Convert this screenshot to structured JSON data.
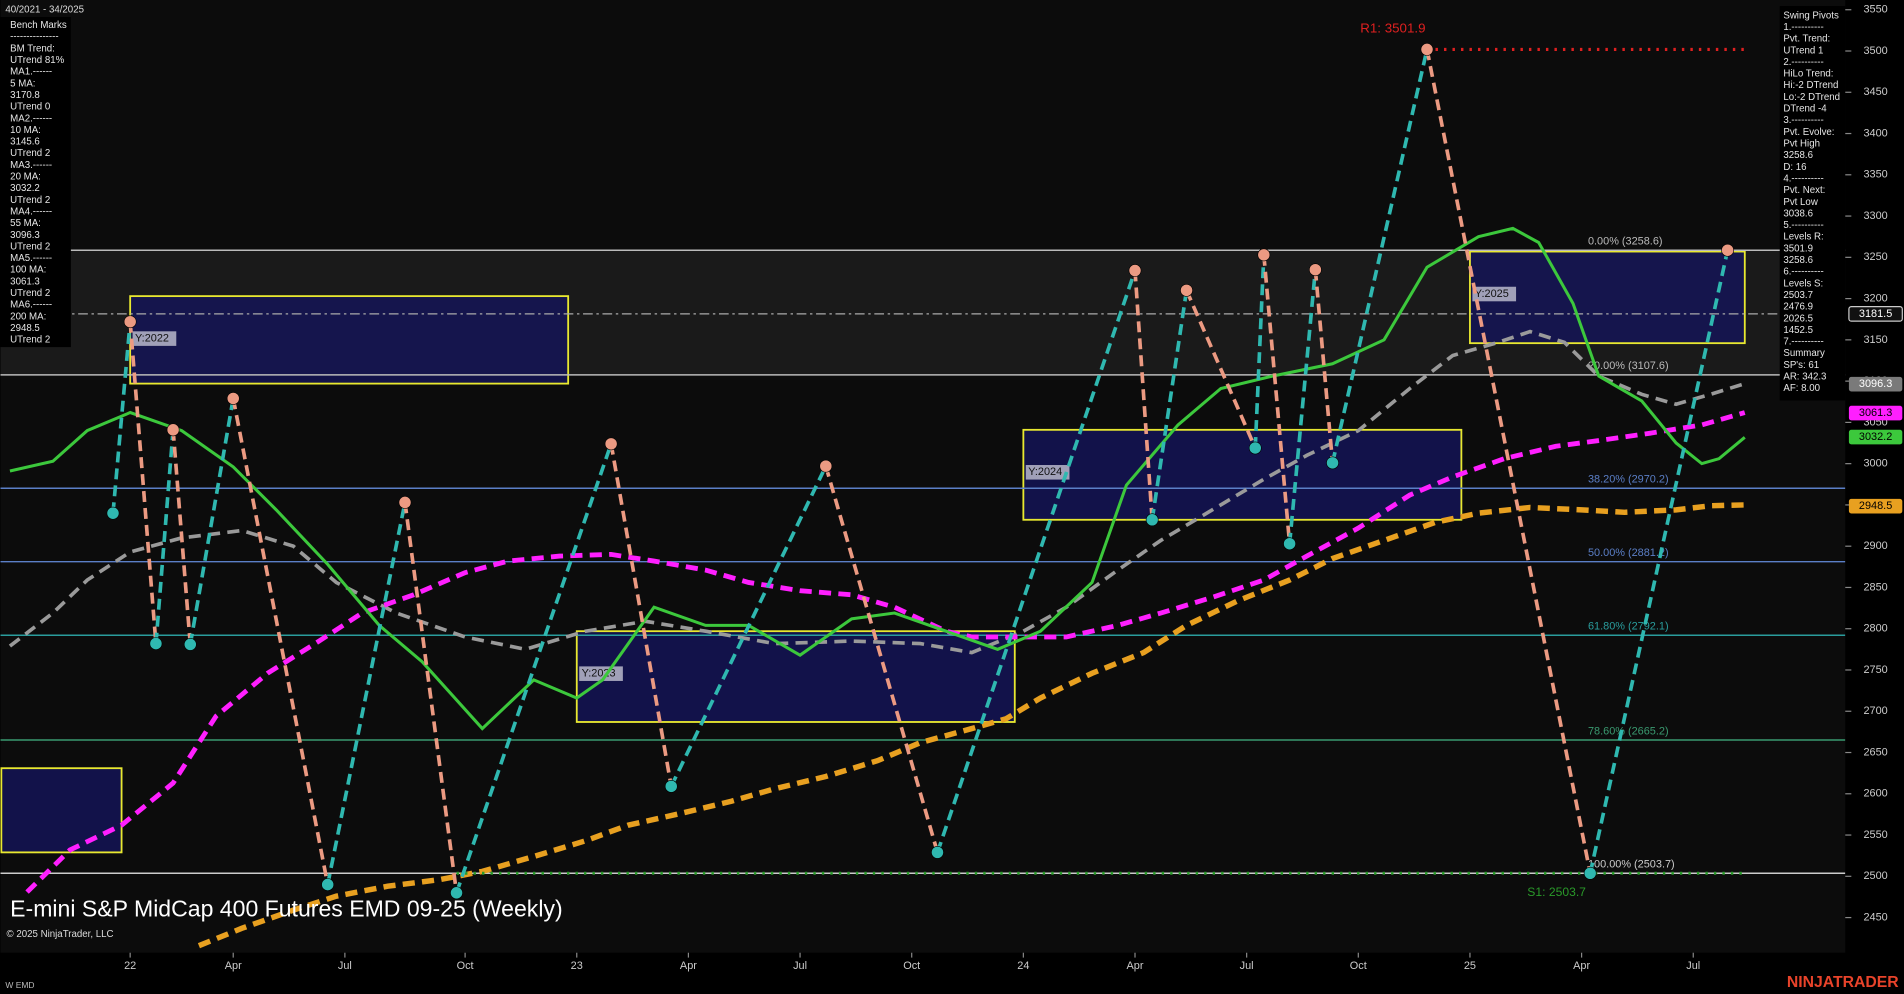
{
  "header": {
    "range": "40/2021 - 34/2025"
  },
  "left_panel": [
    "Bench Marks",
    "---------------",
    "BM Trend:",
    "UTrend 81%",
    "MA1.------",
    "5 MA:",
    "3170.8",
    "UTrend 0",
    "MA2.------",
    "10 MA:",
    "3145.6",
    "UTrend 2",
    "MA3.------",
    "20 MA:",
    "3032.2",
    "UTrend 2",
    "MA4.------",
    "55 MA:",
    "3096.3",
    "UTrend 2",
    "MA5.------",
    "100 MA:",
    "3061.3",
    "UTrend 2",
    "MA6.------",
    "200 MA:",
    "2948.5",
    "UTrend 2"
  ],
  "right_panel": [
    "Swing Pivots",
    "1.----------",
    "Pvt. Trend:",
    "UTrend 1",
    "2.----------",
    "HiLo Trend:",
    "Hi:-2 DTrend",
    "Lo:-2 DTrend",
    "DTrend -4",
    "3.----------",
    "Pvt. Evolve:",
    "Pvt High",
    "3258.6",
    "D: 16",
    "4.----------",
    "Pvt. Next:",
    "Pvt Low",
    "3038.6",
    "5.----------",
    "Levels R:",
    "3501.9",
    "3258.6",
    "6.----------",
    "Levels S:",
    "2503.7",
    "2476.9",
    "2026.5",
    "1452.5",
    "7.----------",
    "Summary",
    "SP's: 61",
    "AR: 342.3",
    "AF: 8.00"
  ],
  "footer": {
    "copyright": "© 2025 NinjaTrader, LLC",
    "instrument": "W EMD",
    "brand": "NINJATRADER"
  },
  "chart_data": {
    "type": "line",
    "title": "E-mini S&P MidCap 400 Futures EMD 09-25 (Weekly)",
    "xlim": [
      -15.1,
      199.7
    ],
    "ylim": [
      2407.4,
      3561.8
    ],
    "xticks": [
      {
        "value": 0,
        "label": "22"
      },
      {
        "value": 12,
        "label": "Apr"
      },
      {
        "value": 25,
        "label": "Jul"
      },
      {
        "value": 39,
        "label": "Oct"
      },
      {
        "value": 52,
        "label": "23"
      },
      {
        "value": 65,
        "label": "Apr"
      },
      {
        "value": 78,
        "label": "Jul"
      },
      {
        "value": 91,
        "label": "Oct"
      },
      {
        "value": 104,
        "label": "24"
      },
      {
        "value": 117,
        "label": "Apr"
      },
      {
        "value": 130,
        "label": "Jul"
      },
      {
        "value": 143,
        "label": "Oct"
      },
      {
        "value": 156,
        "label": "25"
      },
      {
        "value": 169,
        "label": "Apr"
      },
      {
        "value": 182,
        "label": "Jul"
      }
    ],
    "yticks": [
      2450,
      2500,
      2550,
      2600,
      2650,
      2700,
      2750,
      2800,
      2850,
      2900,
      2950,
      3000,
      3050,
      3100,
      3150,
      3200,
      3250,
      3300,
      3350,
      3400,
      3450,
      3500,
      3550
    ],
    "series": [
      {
        "color": "#9a9a9a",
        "dash": "dashed",
        "width": 3,
        "x": [
          -14,
          -9,
          -5,
          0,
          6,
          13,
          19,
          24,
          31,
          39,
          46,
          53,
          60,
          67,
          75,
          84,
          92,
          98,
          104,
          109,
          115,
          120,
          126,
          132,
          137,
          143,
          149,
          154,
          159,
          163,
          167,
          171,
          176,
          180,
          184,
          188
        ],
        "values": [
          2779,
          2819,
          2859,
          2893,
          2910,
          2919,
          2900,
          2856,
          2819,
          2790,
          2775,
          2797,
          2809,
          2797,
          2782,
          2785,
          2782,
          2771,
          2797,
          2826,
          2871,
          2907,
          2944,
          2981,
          3010,
          3040,
          3091,
          3131,
          3146,
          3160,
          3147,
          3106,
          3084,
          3072,
          3084,
          3097
        ]
      },
      {
        "color": "#ff1fff",
        "dash": "dashed",
        "width": 4,
        "x": [
          -12,
          -7,
          -1,
          5,
          10,
          16,
          22,
          27,
          33,
          39,
          44,
          50,
          56,
          61,
          67,
          72,
          78,
          84,
          89,
          95,
          98,
          104,
          109,
          115,
          120,
          126,
          132,
          137,
          143,
          149,
          154,
          160,
          166,
          171,
          177,
          183,
          188
        ],
        "values": [
          2481,
          2532,
          2562,
          2613,
          2694,
          2746,
          2785,
          2819,
          2841,
          2868,
          2882,
          2888,
          2890,
          2882,
          2871,
          2856,
          2846,
          2841,
          2826,
          2797,
          2790,
          2790,
          2790,
          2804,
          2819,
          2838,
          2859,
          2888,
          2922,
          2962,
          2984,
          3006,
          3021,
          3028,
          3037,
          3047,
          3062
        ]
      },
      {
        "color": "#e8a020",
        "dash": "dashed",
        "width": 4.5,
        "x": [
          8,
          13,
          19,
          24,
          30,
          36,
          41,
          47,
          53,
          58,
          64,
          70,
          75,
          81,
          87,
          92,
          98,
          102,
          106,
          112,
          118,
          123,
          129,
          135,
          140,
          146,
          152,
          157,
          163,
          169,
          174,
          180,
          184,
          188
        ],
        "values": [
          2416,
          2437,
          2459,
          2476,
          2488,
          2496,
          2506,
          2524,
          2543,
          2562,
          2576,
          2591,
          2606,
          2621,
          2640,
          2662,
          2679,
          2691,
          2716,
          2746,
          2771,
          2804,
          2834,
          2859,
          2885,
          2907,
          2929,
          2940,
          2947,
          2944,
          2941,
          2944,
          2949,
          2950
        ]
      },
      {
        "color": "#3cc83c",
        "dash": "solid",
        "width": 2.5,
        "x": [
          -14,
          -9,
          -5,
          0,
          6,
          12,
          17,
          23,
          29,
          34,
          41,
          47,
          52,
          55,
          61,
          67,
          72,
          78,
          84,
          89,
          95,
          101,
          106,
          112,
          116,
          122,
          127,
          133,
          140,
          146,
          151,
          157,
          161,
          164,
          168,
          171,
          176,
          180,
          183,
          185,
          188
        ],
        "values": [
          2991,
          3003,
          3040,
          3062,
          3040,
          2996,
          2944,
          2878,
          2804,
          2760,
          2679,
          2738,
          2716,
          2738,
          2826,
          2804,
          2804,
          2768,
          2812,
          2819,
          2797,
          2775,
          2797,
          2856,
          2974,
          3047,
          3091,
          3106,
          3121,
          3150,
          3238,
          3275,
          3285,
          3268,
          3194,
          3106,
          3076,
          3025,
          3000,
          3006,
          3032
        ]
      }
    ],
    "pivots": {
      "color_up": "#2fb8b0",
      "color_down": "#ec9a82",
      "x": [
        -2,
        0,
        3,
        5,
        7,
        12,
        23,
        32,
        38,
        56,
        63,
        81,
        94,
        117,
        119,
        123,
        131,
        132,
        135,
        138,
        140,
        151,
        170,
        186
      ],
      "values": [
        2940,
        3172,
        2782,
        3041,
        2781,
        3079,
        2490,
        2953,
        2480,
        3024,
        2609,
        2997,
        2529,
        3234,
        2932,
        3210,
        3019,
        3253,
        2903,
        3235,
        3001,
        3501.9,
        2503.7,
        3258.6
      ]
    },
    "fib_levels": [
      {
        "label": "0.00% (3258.6)",
        "value": 3258.6,
        "color": "#bbbbbb"
      },
      {
        "label": "20.00% (3107.6)",
        "value": 3107.6,
        "color": "#bbbbbb"
      },
      {
        "label": "38.20% (2970.2)",
        "value": 2970.2,
        "color": "#5b7fc7"
      },
      {
        "label": "50.00% (2881.2)",
        "value": 2881.2,
        "color": "#5b7fc7"
      },
      {
        "label": "61.80% (2792.1)",
        "value": 2792.1,
        "color": "#2a9d9d"
      },
      {
        "label": "78.60% (2665.2)",
        "value": 2665.2,
        "color": "#3a9a70"
      },
      {
        "label": "100.00% (2503.7)",
        "value": 2503.7,
        "color": "#cccccc"
      }
    ],
    "resistance": {
      "label": "R1: 3501.9",
      "value": 3501.9,
      "x": [
        151,
        188
      ],
      "color": "#e02020"
    },
    "support": {
      "label": "S1: 2503.7",
      "value": 2503.7,
      "x": [
        38,
        188
      ],
      "color": "#2a9a2a"
    },
    "year_boxes": [
      {
        "label": null,
        "x": [
          -15,
          -1
        ],
        "y": [
          2529,
          2631
        ]
      },
      {
        "label": "Y:2022",
        "x": [
          0,
          51
        ],
        "y": [
          3097,
          3203
        ]
      },
      {
        "label": "Y:2023",
        "x": [
          52,
          103
        ],
        "y": [
          2687,
          2797
        ]
      },
      {
        "label": "Y:2024",
        "x": [
          104,
          155
        ],
        "y": [
          2932,
          3041
        ]
      },
      {
        "label": "Y:2025",
        "x": [
          156,
          188
        ],
        "y": [
          3146,
          3257
        ]
      }
    ],
    "price_tags": [
      {
        "value": 3181.5,
        "color": "#111111",
        "text_color": "#ffffff",
        "line": true
      },
      {
        "value": 3096.3,
        "color": "#7a7a7a",
        "text_color": "#ffffff",
        "line": false
      },
      {
        "value": 3061.3,
        "color": "#ff1fff",
        "text_color": "#000000",
        "line": false
      },
      {
        "value": 3032.2,
        "color": "#3cc83c",
        "text_color": "#000000",
        "line": false
      },
      {
        "value": 2948.5,
        "color": "#e8a020",
        "text_color": "#000000",
        "line": false
      }
    ]
  }
}
